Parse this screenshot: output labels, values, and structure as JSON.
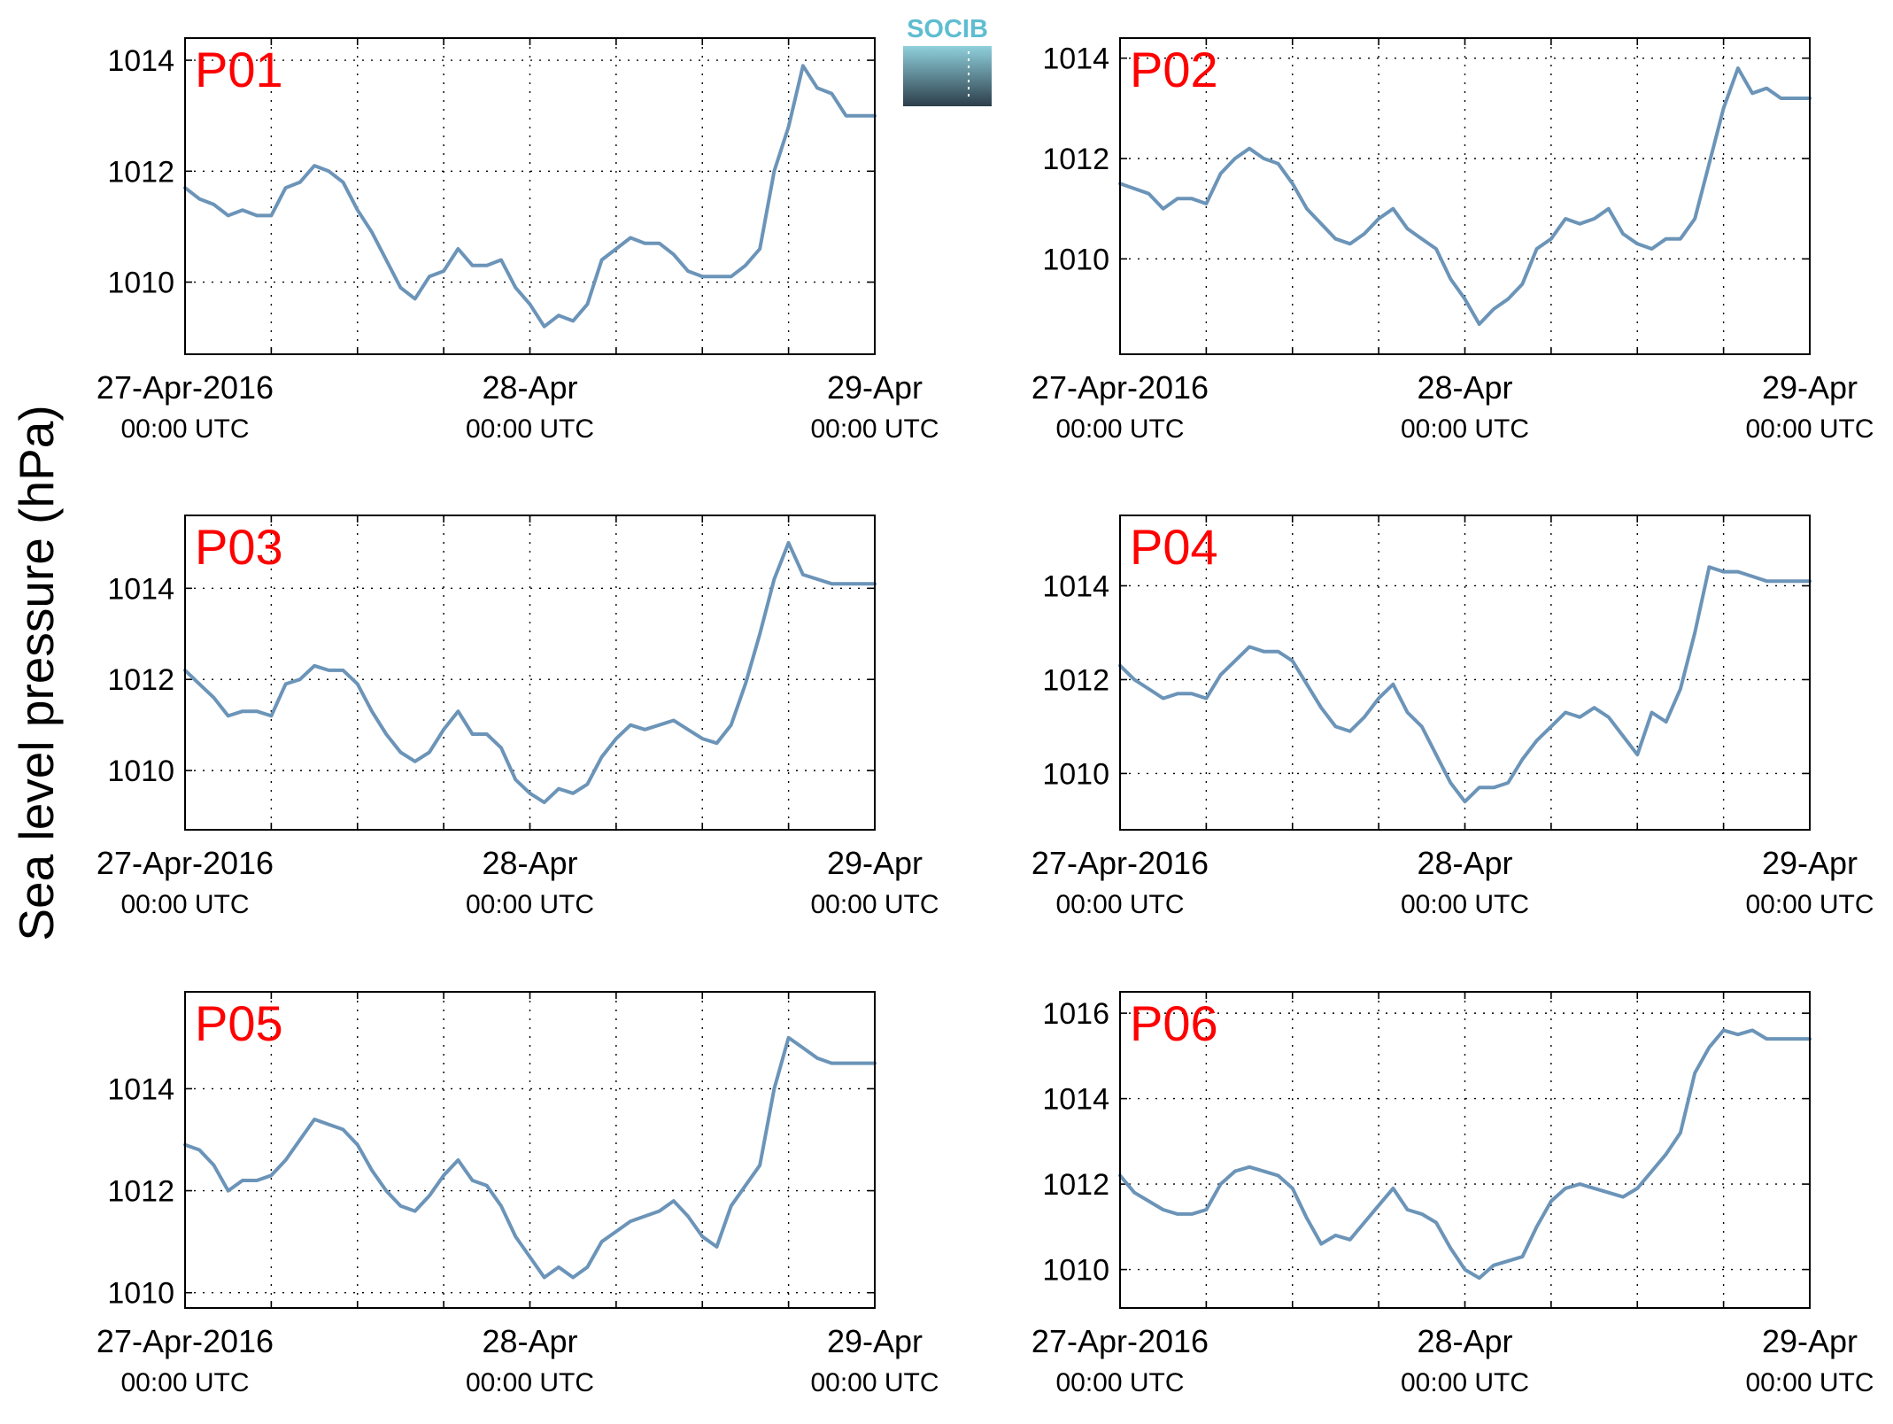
{
  "figure": {
    "ylabel": "Sea level pressure (hPa)",
    "logo_text": "SOCIB",
    "colors": {
      "line": "#6b94b8",
      "title": "#ff0000",
      "grid": "#000000",
      "logo_top": "#8fd0dc",
      "logo_bottom": "#2c3e4a",
      "logo_text": "#5fbdd0"
    }
  },
  "chart_data": [
    {
      "type": "line",
      "title": "P01",
      "x_tick_labels": [
        [
          "27-Apr-2016",
          "00:00 UTC"
        ],
        [
          "28-Apr",
          "00:00 UTC"
        ],
        [
          "29-Apr",
          "00:00 UTC"
        ]
      ],
      "xlim": [
        0,
        48
      ],
      "ylim": [
        1008.7,
        1014.4
      ],
      "yticks": [
        1010,
        1012,
        1014
      ],
      "grid": true,
      "x": [
        0,
        1,
        2,
        3,
        4,
        5,
        6,
        7,
        8,
        9,
        10,
        11,
        12,
        13,
        14,
        15,
        16,
        17,
        18,
        19,
        20,
        21,
        22,
        23,
        24,
        25,
        26,
        27,
        28,
        29,
        30,
        31,
        32,
        33,
        34,
        35,
        36,
        37,
        38,
        39,
        40,
        41,
        42,
        43,
        44,
        45,
        46,
        47,
        48
      ],
      "values": [
        1011.7,
        1011.5,
        1011.4,
        1011.2,
        1011.3,
        1011.2,
        1011.2,
        1011.7,
        1011.8,
        1012.1,
        1012.0,
        1011.8,
        1011.3,
        1010.9,
        1010.4,
        1009.9,
        1009.7,
        1010.1,
        1010.2,
        1010.6,
        1010.3,
        1010.3,
        1010.4,
        1009.9,
        1009.6,
        1009.2,
        1009.4,
        1009.3,
        1009.6,
        1010.4,
        1010.6,
        1010.8,
        1010.7,
        1010.7,
        1010.5,
        1010.2,
        1010.1,
        1010.1,
        1010.1,
        1010.3,
        1010.6,
        1012.0,
        1012.8,
        1013.9,
        1013.5,
        1013.4,
        1013.0,
        1013.0,
        1013.0
      ]
    },
    {
      "type": "line",
      "title": "P02",
      "x_tick_labels": [
        [
          "27-Apr-2016",
          "00:00 UTC"
        ],
        [
          "28-Apr",
          "00:00 UTC"
        ],
        [
          "29-Apr",
          "00:00 UTC"
        ]
      ],
      "xlim": [
        0,
        48
      ],
      "ylim": [
        1008.1,
        1014.4
      ],
      "yticks": [
        1010,
        1012,
        1014
      ],
      "grid": true,
      "x": [
        0,
        1,
        2,
        3,
        4,
        5,
        6,
        7,
        8,
        9,
        10,
        11,
        12,
        13,
        14,
        15,
        16,
        17,
        18,
        19,
        20,
        21,
        22,
        23,
        24,
        25,
        26,
        27,
        28,
        29,
        30,
        31,
        32,
        33,
        34,
        35,
        36,
        37,
        38,
        39,
        40,
        41,
        42,
        43,
        44,
        45,
        46,
        47,
        48
      ],
      "values": [
        1011.5,
        1011.4,
        1011.3,
        1011.0,
        1011.2,
        1011.2,
        1011.1,
        1011.7,
        1012.0,
        1012.2,
        1012.0,
        1011.9,
        1011.5,
        1011.0,
        1010.7,
        1010.4,
        1010.3,
        1010.5,
        1010.8,
        1011.0,
        1010.6,
        1010.4,
        1010.2,
        1009.6,
        1009.2,
        1008.7,
        1009.0,
        1009.2,
        1009.5,
        1010.2,
        1010.4,
        1010.8,
        1010.7,
        1010.8,
        1011.0,
        1010.5,
        1010.3,
        1010.2,
        1010.4,
        1010.4,
        1010.8,
        1011.9,
        1013.0,
        1013.8,
        1013.3,
        1013.4,
        1013.2,
        1013.2,
        1013.2
      ]
    },
    {
      "type": "line",
      "title": "P03",
      "x_tick_labels": [
        [
          "27-Apr-2016",
          "00:00 UTC"
        ],
        [
          "28-Apr",
          "00:00 UTC"
        ],
        [
          "29-Apr",
          "00:00 UTC"
        ]
      ],
      "xlim": [
        0,
        48
      ],
      "ylim": [
        1008.7,
        1015.6
      ],
      "yticks": [
        1010,
        1012,
        1014
      ],
      "grid": true,
      "x": [
        0,
        1,
        2,
        3,
        4,
        5,
        6,
        7,
        8,
        9,
        10,
        11,
        12,
        13,
        14,
        15,
        16,
        17,
        18,
        19,
        20,
        21,
        22,
        23,
        24,
        25,
        26,
        27,
        28,
        29,
        30,
        31,
        32,
        33,
        34,
        35,
        36,
        37,
        38,
        39,
        40,
        41,
        42,
        43,
        44,
        45,
        46,
        47,
        48
      ],
      "values": [
        1012.2,
        1011.9,
        1011.6,
        1011.2,
        1011.3,
        1011.3,
        1011.2,
        1011.9,
        1012.0,
        1012.3,
        1012.2,
        1012.2,
        1011.9,
        1011.3,
        1010.8,
        1010.4,
        1010.2,
        1010.4,
        1010.9,
        1011.3,
        1010.8,
        1010.8,
        1010.5,
        1009.8,
        1009.5,
        1009.3,
        1009.6,
        1009.5,
        1009.7,
        1010.3,
        1010.7,
        1011.0,
        1010.9,
        1011.0,
        1011.1,
        1010.9,
        1010.7,
        1010.6,
        1011.0,
        1011.9,
        1013.0,
        1014.2,
        1015.0,
        1014.3,
        1014.2,
        1014.1,
        1014.1,
        1014.1,
        1014.1
      ]
    },
    {
      "type": "line",
      "title": "P04",
      "x_tick_labels": [
        [
          "27-Apr-2016",
          "00:00 UTC"
        ],
        [
          "28-Apr",
          "00:00 UTC"
        ],
        [
          "29-Apr",
          "00:00 UTC"
        ]
      ],
      "xlim": [
        0,
        48
      ],
      "ylim": [
        1008.8,
        1015.5
      ],
      "yticks": [
        1010,
        1012,
        1014
      ],
      "grid": true,
      "x": [
        0,
        1,
        2,
        3,
        4,
        5,
        6,
        7,
        8,
        9,
        10,
        11,
        12,
        13,
        14,
        15,
        16,
        17,
        18,
        19,
        20,
        21,
        22,
        23,
        24,
        25,
        26,
        27,
        28,
        29,
        30,
        31,
        32,
        33,
        34,
        35,
        36,
        37,
        38,
        39,
        40,
        41,
        42,
        43,
        44,
        45,
        46,
        47,
        48
      ],
      "values": [
        1012.3,
        1012.0,
        1011.8,
        1011.6,
        1011.7,
        1011.7,
        1011.6,
        1012.1,
        1012.4,
        1012.7,
        1012.6,
        1012.6,
        1012.4,
        1011.9,
        1011.4,
        1011.0,
        1010.9,
        1011.2,
        1011.6,
        1011.9,
        1011.3,
        1011.0,
        1010.4,
        1009.8,
        1009.4,
        1009.7,
        1009.7,
        1009.8,
        1010.3,
        1010.7,
        1011.0,
        1011.3,
        1011.2,
        1011.4,
        1011.2,
        1010.8,
        1010.4,
        1011.3,
        1011.1,
        1011.8,
        1013.0,
        1014.4,
        1014.3,
        1014.3,
        1014.2,
        1014.1,
        1014.1,
        1014.1,
        1014.1
      ]
    },
    {
      "type": "line",
      "title": "P05",
      "x_tick_labels": [
        [
          "27-Apr-2016",
          "00:00 UTC"
        ],
        [
          "28-Apr",
          "00:00 UTC"
        ],
        [
          "29-Apr",
          "00:00 UTC"
        ]
      ],
      "xlim": [
        0,
        48
      ],
      "ylim": [
        1009.7,
        1015.9
      ],
      "yticks": [
        1010,
        1012,
        1014
      ],
      "grid": true,
      "x": [
        0,
        1,
        2,
        3,
        4,
        5,
        6,
        7,
        8,
        9,
        10,
        11,
        12,
        13,
        14,
        15,
        16,
        17,
        18,
        19,
        20,
        21,
        22,
        23,
        24,
        25,
        26,
        27,
        28,
        29,
        30,
        31,
        32,
        33,
        34,
        35,
        36,
        37,
        38,
        39,
        40,
        41,
        42,
        43,
        44,
        45,
        46,
        47,
        48
      ],
      "values": [
        1012.9,
        1012.8,
        1012.5,
        1012.0,
        1012.2,
        1012.2,
        1012.3,
        1012.6,
        1013.0,
        1013.4,
        1013.3,
        1013.2,
        1012.9,
        1012.4,
        1012.0,
        1011.7,
        1011.6,
        1011.9,
        1012.3,
        1012.6,
        1012.2,
        1012.1,
        1011.7,
        1011.1,
        1010.7,
        1010.3,
        1010.5,
        1010.3,
        1010.5,
        1011.0,
        1011.2,
        1011.4,
        1011.5,
        1011.6,
        1011.8,
        1011.5,
        1011.1,
        1010.9,
        1011.7,
        1012.1,
        1012.5,
        1014.0,
        1015.0,
        1014.8,
        1014.6,
        1014.5,
        1014.5,
        1014.5,
        1014.5
      ]
    },
    {
      "type": "line",
      "title": "P06",
      "x_tick_labels": [
        [
          "27-Apr-2016",
          "00:00 UTC"
        ],
        [
          "28-Apr",
          "00:00 UTC"
        ],
        [
          "29-Apr",
          "00:00 UTC"
        ]
      ],
      "xlim": [
        0,
        48
      ],
      "ylim": [
        1009.1,
        1016.5
      ],
      "yticks": [
        1010,
        1012,
        1014,
        1016
      ],
      "grid": true,
      "x": [
        0,
        1,
        2,
        3,
        4,
        5,
        6,
        7,
        8,
        9,
        10,
        11,
        12,
        13,
        14,
        15,
        16,
        17,
        18,
        19,
        20,
        21,
        22,
        23,
        24,
        25,
        26,
        27,
        28,
        29,
        30,
        31,
        32,
        33,
        34,
        35,
        36,
        37,
        38,
        39,
        40,
        41,
        42,
        43,
        44,
        45,
        46,
        47,
        48
      ],
      "values": [
        1012.2,
        1011.8,
        1011.6,
        1011.4,
        1011.3,
        1011.3,
        1011.4,
        1012.0,
        1012.3,
        1012.4,
        1012.3,
        1012.2,
        1011.9,
        1011.2,
        1010.6,
        1010.8,
        1010.7,
        1011.1,
        1011.5,
        1011.9,
        1011.4,
        1011.3,
        1011.1,
        1010.5,
        1010.0,
        1009.8,
        1010.1,
        1010.2,
        1010.3,
        1011.0,
        1011.6,
        1011.9,
        1012.0,
        1011.9,
        1011.8,
        1011.7,
        1011.9,
        1012.3,
        1012.7,
        1013.2,
        1014.6,
        1015.2,
        1015.6,
        1015.5,
        1015.6,
        1015.4,
        1015.4,
        1015.4,
        1015.4
      ]
    }
  ]
}
